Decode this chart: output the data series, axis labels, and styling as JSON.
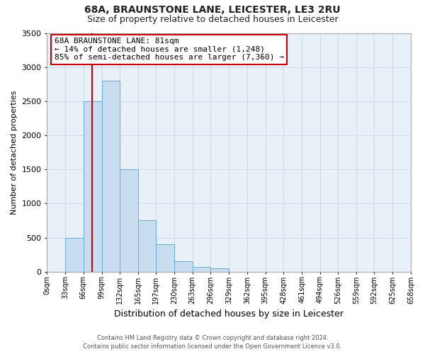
{
  "title": "68A, BRAUNSTONE LANE, LEICESTER, LE3 2RU",
  "subtitle": "Size of property relative to detached houses in Leicester",
  "xlabel": "Distribution of detached houses by size in Leicester",
  "ylabel": "Number of detached properties",
  "bar_values": [
    0,
    500,
    2500,
    2800,
    1500,
    750,
    400,
    150,
    75,
    50,
    0,
    0,
    0,
    0,
    0,
    0,
    0,
    0,
    0,
    0
  ],
  "bin_edges": [
    0,
    33,
    66,
    99,
    132,
    165,
    197,
    230,
    263,
    296,
    329,
    362,
    395,
    428,
    461,
    494,
    526,
    559,
    592,
    625,
    658
  ],
  "tick_labels": [
    "0sqm",
    "33sqm",
    "66sqm",
    "99sqm",
    "132sqm",
    "165sqm",
    "197sqm",
    "230sqm",
    "263sqm",
    "296sqm",
    "329sqm",
    "362sqm",
    "395sqm",
    "428sqm",
    "461sqm",
    "494sqm",
    "526sqm",
    "559sqm",
    "592sqm",
    "625sqm",
    "658sqm"
  ],
  "bar_color": "#c8ddf0",
  "bar_edge_color": "#6aaad4",
  "vline_x": 81,
  "vline_color": "#cc0000",
  "ylim": [
    0,
    3500
  ],
  "yticks": [
    0,
    500,
    1000,
    1500,
    2000,
    2500,
    3000,
    3500
  ],
  "annotation_title": "68A BRAUNSTONE LANE: 81sqm",
  "annotation_line1": "← 14% of detached houses are smaller (1,248)",
  "annotation_line2": "85% of semi-detached houses are larger (7,360) →",
  "annotation_box_facecolor": "#ffffff",
  "annotation_box_edgecolor": "#cc0000",
  "grid_color": "#d0dce8",
  "plot_bg_color": "#e8f0f8",
  "fig_bg_color": "#ffffff",
  "footer_line1": "Contains HM Land Registry data © Crown copyright and database right 2024.",
  "footer_line2": "Contains public sector information licensed under the Open Government Licence v3.0.",
  "title_fontsize": 10,
  "subtitle_fontsize": 9,
  "ylabel_fontsize": 8,
  "xlabel_fontsize": 9,
  "ytick_fontsize": 8,
  "xtick_fontsize": 7
}
